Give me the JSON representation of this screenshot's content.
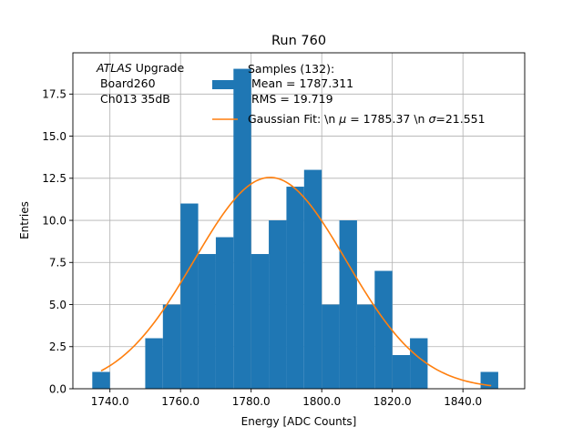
{
  "chart_data": {
    "type": "bar",
    "title": "Run 760",
    "xlabel": "Energy [ADC Counts]",
    "ylabel": "Entries",
    "xlim": [
      1729.5,
      1857.5
    ],
    "ylim": [
      0,
      19.95
    ],
    "grid": true,
    "bin_width": 5,
    "bin_starts": [
      1735,
      1740,
      1745,
      1750,
      1755,
      1760,
      1765,
      1770,
      1775,
      1780,
      1785,
      1790,
      1795,
      1800,
      1805,
      1810,
      1815,
      1820,
      1825,
      1830,
      1835,
      1840,
      1845
    ],
    "values": [
      1,
      0,
      0,
      3,
      5,
      11,
      8,
      9,
      19,
      8,
      10,
      12,
      13,
      5,
      10,
      5,
      7,
      2,
      3,
      0,
      0,
      0,
      1
    ],
    "x_ticks": [
      1740,
      1760,
      1780,
      1800,
      1820,
      1840
    ],
    "x_tick_labels": [
      "1740.0",
      "1760.0",
      "1780.0",
      "1800.0",
      "1820.0",
      "1840.0"
    ],
    "y_ticks": [
      0,
      2.5,
      5,
      7.5,
      10,
      12.5,
      15,
      17.5
    ],
    "y_tick_labels": [
      "0.0",
      "2.5",
      "5.0",
      "7.5",
      "10.0",
      "12.5",
      "15.0",
      "17.5"
    ],
    "fit": {
      "mu": 1785.37,
      "sigma": 21.551,
      "amplitude": 12.55,
      "x_range": [
        1737.5,
        1848
      ]
    },
    "colors": {
      "hist": "#1f77b4",
      "fit": "#ff7f0e",
      "grid": "#b0b0b0"
    },
    "annotation": {
      "italic": "ATLAS",
      "line1_rest": " Upgrade",
      "line2": " Board260",
      "line3": " Ch013 35dB"
    },
    "legend": {
      "placement": "top-center",
      "hist_lines": [
        "Samples (132):",
        " Mean = 1787.311",
        " RMS = 19.719"
      ],
      "fit_prefix": "Gaussian Fit: \\n ",
      "fit_mu_symbol": "μ",
      "fit_mid": " = 1785.37 \\n ",
      "fit_sigma_symbol": "σ",
      "fit_suffix": "=21.551"
    }
  }
}
